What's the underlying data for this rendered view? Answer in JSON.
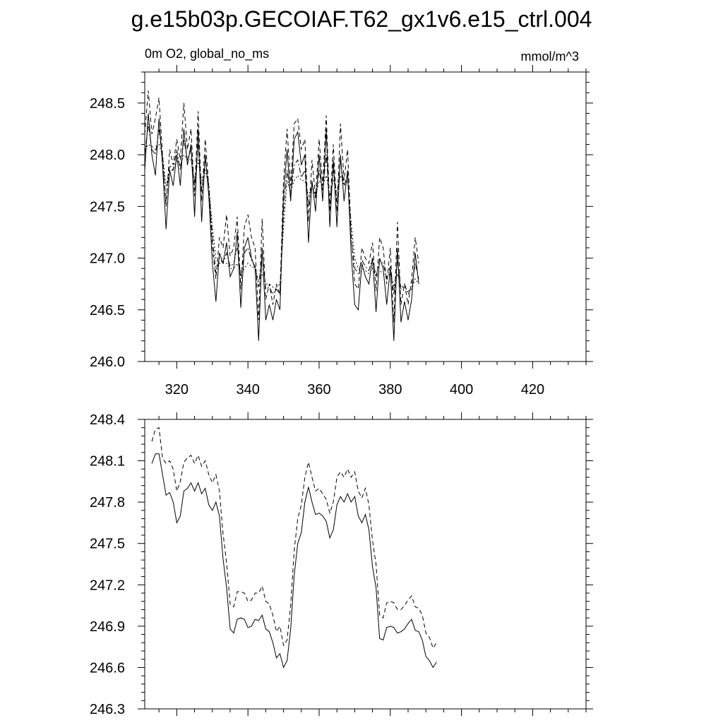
{
  "figure": {
    "title": "g.e15b03p.GECOIAF.T62_gx1v6.e15_ctrl.004",
    "left_subtitle": "0m O2, global_no_ms",
    "right_subtitle": "mmol/m^3"
  },
  "chart_data": [
    {
      "type": "line",
      "title": "",
      "xlabel": "",
      "ylabel": "",
      "xlim": [
        311,
        435
      ],
      "ylim": [
        246.0,
        248.8
      ],
      "x_ticks": [
        320,
        340,
        360,
        380,
        400,
        420
      ],
      "y_ticks": [
        "246.0",
        "246.5",
        "247.0",
        "247.5",
        "248.0",
        "248.5"
      ],
      "x_start": 311,
      "grid": false,
      "legend": "none",
      "series": [
        {
          "style": "solid",
          "values": [
            247.85,
            248.4,
            248.0,
            247.8,
            248.35,
            247.9,
            247.28,
            247.85,
            247.7,
            248.0,
            247.7,
            248.25,
            247.9,
            248.1,
            247.4,
            248.25,
            247.35,
            248.0,
            247.6,
            246.95,
            246.58,
            247.05,
            246.95,
            247.15,
            246.82,
            246.9,
            247.25,
            246.52,
            247.1,
            247.2,
            247.0,
            246.9,
            246.2,
            247.1,
            246.4,
            246.55,
            246.4,
            246.6,
            246.5,
            247.6,
            248.05,
            247.55,
            248.15,
            248.22,
            247.9,
            248.0,
            247.15,
            247.75,
            247.45,
            248.0,
            247.55,
            248.25,
            247.3,
            247.95,
            247.3,
            248.0,
            247.55,
            247.85,
            247.05,
            246.55,
            246.5,
            246.95,
            246.82,
            246.75,
            247.0,
            246.48,
            247.0,
            246.9,
            246.55,
            246.9,
            246.2,
            247.1,
            246.38,
            246.58,
            246.4,
            246.6,
            247.05,
            246.75
          ]
        },
        {
          "style": "dash",
          "values": [
            248.2,
            248.62,
            248.2,
            248.35,
            248.55,
            248.0,
            247.5,
            248.05,
            247.9,
            248.15,
            247.95,
            248.5,
            248.05,
            248.25,
            247.6,
            248.42,
            247.55,
            248.15,
            247.7,
            247.1,
            246.8,
            247.2,
            247.1,
            247.42,
            247.02,
            247.1,
            247.4,
            246.7,
            247.3,
            247.42,
            247.2,
            247.1,
            246.4,
            247.38,
            246.6,
            246.75,
            246.55,
            246.75,
            246.65,
            247.75,
            248.25,
            247.7,
            248.3,
            248.35,
            248.05,
            248.15,
            247.35,
            247.95,
            247.6,
            248.15,
            247.7,
            248.38,
            247.45,
            248.1,
            247.45,
            248.3,
            247.75,
            248.05,
            247.25,
            246.75,
            246.7,
            247.1,
            247.0,
            246.95,
            247.15,
            246.68,
            247.2,
            247.1,
            246.75,
            247.1,
            246.38,
            247.35,
            246.55,
            246.75,
            246.55,
            246.8,
            247.2,
            246.95
          ]
        },
        {
          "style": "dashdot",
          "values": [
            248.0,
            248.3,
            248.05,
            248.0,
            248.25,
            247.95,
            247.55,
            247.9,
            247.85,
            248.05,
            247.85,
            248.15,
            247.95,
            248.05,
            247.7,
            248.1,
            247.65,
            247.95,
            247.7,
            247.2,
            246.85,
            247.0,
            246.95,
            247.05,
            246.92,
            246.95,
            247.1,
            246.82,
            247.05,
            247.1,
            246.98,
            246.92,
            246.72,
            247.05,
            246.7,
            246.72,
            246.65,
            246.7,
            246.65,
            247.45,
            247.85,
            247.6,
            247.9,
            247.95,
            247.78,
            247.85,
            247.5,
            247.72,
            247.58,
            247.85,
            247.65,
            248.0,
            247.52,
            247.85,
            247.55,
            247.95,
            247.7,
            247.8,
            247.2,
            246.9,
            246.85,
            246.98,
            246.92,
            246.88,
            247.0,
            246.82,
            246.98,
            246.95,
            246.8,
            246.92,
            246.65,
            246.98,
            246.7,
            246.75,
            246.65,
            246.72,
            246.95,
            246.8
          ]
        },
        {
          "style": "dot",
          "values": [
            248.05,
            248.1,
            248.08,
            248.05,
            248.1,
            248.0,
            247.7,
            247.85,
            247.85,
            247.95,
            247.9,
            248.0,
            247.95,
            247.95,
            247.75,
            247.95,
            247.75,
            247.85,
            247.7,
            247.3,
            247.0,
            246.95,
            246.95,
            246.95,
            246.9,
            246.9,
            246.95,
            246.85,
            246.9,
            246.95,
            246.92,
            246.9,
            246.78,
            246.85,
            246.75,
            246.75,
            246.72,
            246.72,
            246.75,
            247.3,
            247.75,
            247.65,
            247.75,
            247.8,
            247.75,
            247.75,
            247.6,
            247.7,
            247.6,
            247.75,
            247.7,
            247.8,
            247.6,
            247.75,
            247.65,
            247.8,
            247.7,
            247.75,
            247.35,
            247.0,
            246.9,
            246.9,
            246.88,
            246.85,
            246.9,
            246.82,
            246.88,
            246.85,
            246.82,
            246.85,
            246.72,
            246.85,
            246.72,
            246.72,
            246.68,
            246.7,
            246.8,
            246.75
          ]
        }
      ]
    },
    {
      "type": "line",
      "title": "",
      "xlabel": "",
      "ylabel": "",
      "xlim": [
        311,
        435
      ],
      "ylim": [
        246.3,
        248.4
      ],
      "x_ticks": [
        320,
        340,
        360,
        380,
        400,
        420
      ],
      "y_ticks": [
        "246.3",
        "246.6",
        "246.9",
        "247.2",
        "247.5",
        "247.8",
        "248.1",
        "248.4"
      ],
      "x_start": 313,
      "grid": false,
      "legend": "none",
      "series": [
        {
          "style": "solid",
          "values": [
            248.08,
            248.15,
            248.15,
            248.0,
            247.85,
            247.87,
            247.8,
            247.65,
            247.7,
            247.88,
            247.9,
            247.94,
            247.88,
            247.94,
            247.86,
            247.9,
            247.78,
            247.74,
            247.8,
            247.7,
            247.39,
            247.18,
            246.88,
            246.85,
            246.95,
            246.96,
            246.95,
            246.89,
            246.9,
            246.95,
            246.94,
            246.98,
            246.88,
            246.86,
            246.78,
            246.67,
            246.7,
            246.6,
            246.65,
            246.88,
            247.27,
            247.5,
            247.58,
            247.8,
            247.91,
            247.8,
            247.71,
            247.72,
            247.7,
            247.66,
            247.54,
            247.6,
            247.78,
            247.84,
            247.8,
            247.86,
            247.8,
            247.84,
            247.7,
            247.65,
            247.71,
            247.6,
            247.33,
            247.18,
            246.81,
            246.8,
            246.89,
            246.9,
            246.89,
            246.85,
            246.86,
            246.88,
            246.92,
            246.95,
            246.87,
            246.86,
            246.8,
            246.68,
            246.65,
            246.6,
            246.64
          ]
        },
        {
          "style": "dash",
          "values": [
            248.24,
            248.33,
            248.34,
            248.12,
            248.08,
            248.1,
            248.04,
            247.88,
            247.95,
            248.09,
            248.12,
            248.14,
            248.08,
            248.14,
            248.06,
            248.1,
            248.0,
            247.94,
            248.0,
            247.88,
            247.57,
            247.36,
            247.06,
            247.04,
            247.15,
            247.15,
            247.14,
            247.08,
            247.09,
            247.14,
            247.14,
            247.19,
            247.08,
            247.06,
            246.98,
            246.86,
            246.9,
            246.76,
            246.8,
            247.05,
            247.45,
            247.68,
            247.78,
            247.98,
            248.09,
            247.98,
            247.88,
            247.9,
            247.86,
            247.82,
            247.72,
            247.8,
            247.98,
            248.02,
            247.98,
            248.04,
            247.98,
            248.02,
            247.88,
            247.83,
            247.9,
            247.78,
            247.52,
            247.35,
            246.98,
            246.96,
            247.07,
            247.08,
            247.07,
            247.02,
            247.02,
            247.05,
            247.09,
            247.12,
            247.04,
            247.03,
            246.98,
            246.85,
            246.82,
            246.74,
            246.78
          ]
        }
      ]
    }
  ]
}
